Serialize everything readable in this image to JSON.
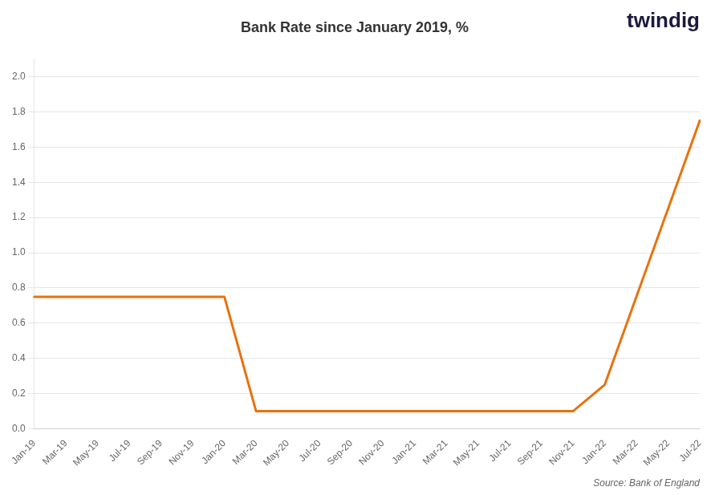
{
  "chart_data": {
    "type": "line",
    "title": "Bank Rate since January 2019, %",
    "annotations": [
      "twindig",
      "Source: Bank of England"
    ],
    "categories": [
      "Jan-19",
      "Mar-19",
      "May-19",
      "Jul-19",
      "Sep-19",
      "Nov-19",
      "Jan-20",
      "Mar-20",
      "May-20",
      "Jul-20",
      "Sep-20",
      "Nov-20",
      "Jan-21",
      "Mar-21",
      "May-21",
      "Jul-21",
      "Sep-21",
      "Nov-21",
      "Jan-22",
      "Mar-22",
      "May-22",
      "Jul-22"
    ],
    "values": [
      0.75,
      0.75,
      0.75,
      0.75,
      0.75,
      0.75,
      0.75,
      0.1,
      0.1,
      0.1,
      0.1,
      0.1,
      0.1,
      0.1,
      0.1,
      0.1,
      0.1,
      0.1,
      0.25,
      0.75,
      1.25,
      1.75
    ],
    "color": "#E8720C",
    "ylim": [
      0.0,
      2.1
    ],
    "yticks": [
      {
        "value": 0,
        "label": "0.0"
      },
      0.2,
      0.4,
      0.6,
      0.8,
      {
        "value": 1,
        "label": "1.0"
      },
      1.2,
      1.4,
      1.6,
      1.8,
      {
        "value": 2,
        "label": "2.0"
      }
    ],
    "grid": "y"
  }
}
